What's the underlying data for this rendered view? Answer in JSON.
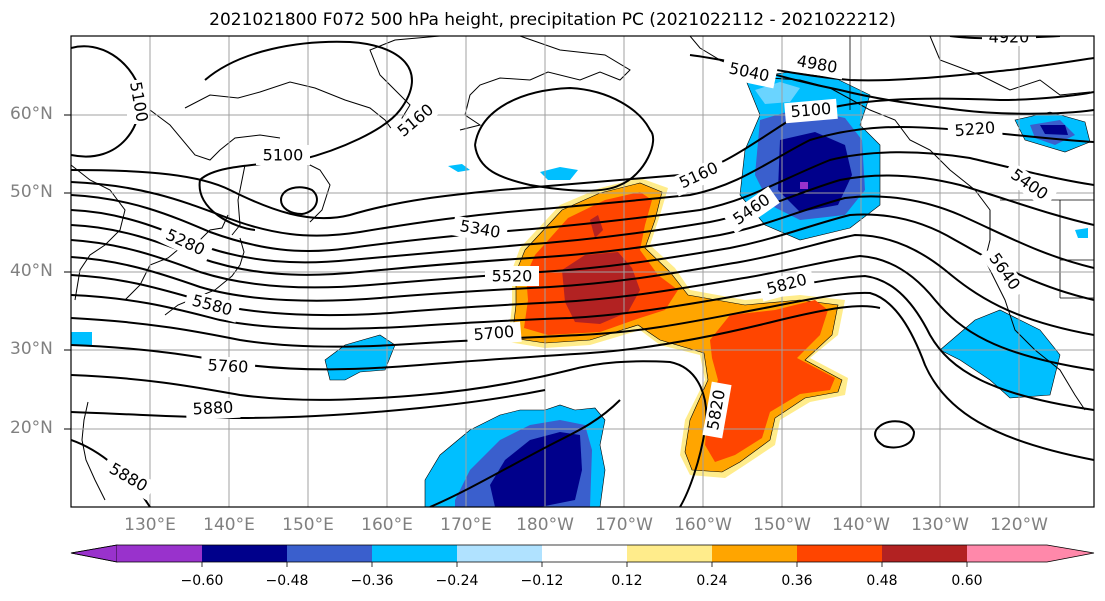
{
  "title": "2021021800 F072 500 hPa height, precipitation PC (2021022112 - 2021022212)",
  "lat_labels": [
    "60°N",
    "50°N",
    "40°N",
    "30°N",
    "20°N"
  ],
  "lon_labels": [
    "130°E",
    "140°E",
    "150°E",
    "160°E",
    "170°E",
    "180°W",
    "170°W",
    "160°W",
    "150°W",
    "140°W",
    "130°W",
    "120°W"
  ],
  "colorbar": {
    "ticks": [
      "−0.60",
      "−0.48",
      "−0.36",
      "−0.24",
      "−0.12",
      "0.12",
      "0.24",
      "0.36",
      "0.48",
      "0.60"
    ],
    "colors": [
      "#9932cc",
      "#00008b",
      "#3a5fcd",
      "#00bfff",
      "#b0e2ff",
      "#ffffff",
      "#ffec8b",
      "#ffa500",
      "#ff4500",
      "#b22222",
      "#ff88aa"
    ]
  },
  "contour_labels": [
    "5100",
    "5160",
    "5100",
    "4980",
    "5040",
    "5100",
    "5220",
    "5400",
    "5160",
    "5460",
    "5280",
    "5340",
    "5520",
    "5580",
    "5640",
    "5700",
    "5760",
    "5820",
    "5880",
    "5820",
    "5880",
    "4920"
  ]
}
